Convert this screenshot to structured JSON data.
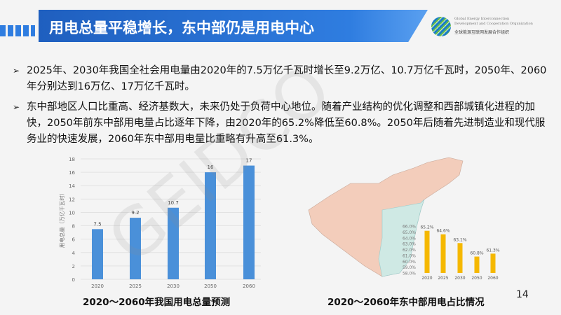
{
  "header": {
    "title": "用电总量平稳增长，东中部仍是用电中心"
  },
  "logo": {
    "en_line1": "Global Energy Interconnection",
    "en_line2": "Development and Cooperation Organization",
    "cn": "全球能源互联网发展合作组织"
  },
  "watermark": "GEIDCO",
  "bullets": [
    "2025年、2030年我国全社会用电量由2020年的7.5万亿千瓦时增长至9.2万亿、10.7万亿千瓦时，2050年、2060年分别达到16万亿、17万亿千瓦时。",
    "东中部地区人口比重高、经济基数大，未来仍处于负荷中心地位。随着产业结构的优化调整和西部城镇化进程的加快，2050年前东中部用电量占比逐年下降，由2020年的65.2%降低至60.8%。2050年后随着先进制造业和现代服务业的快速发展，2060年东中部用电量比重略有升高至61.3%。"
  ],
  "page_number": "14",
  "chart_data": [
    {
      "type": "bar",
      "title": "2020～2060年我国用电总量预测",
      "ylabel": "用电总量（万亿千瓦时）",
      "categories": [
        "2020",
        "2025",
        "2030",
        "2050",
        "2060"
      ],
      "values": [
        7.5,
        9.2,
        10.7,
        16,
        17
      ],
      "data_labels": [
        "7.5",
        "9.2",
        "10.7",
        "16",
        "17"
      ],
      "ylim": [
        0,
        18
      ],
      "yticks": [
        "0",
        "2",
        "4",
        "6",
        "8",
        "10",
        "12",
        "14",
        "16",
        "18"
      ],
      "grid": true,
      "color": "#4a90d9"
    },
    {
      "type": "bar",
      "title": "2020～2060年东中部用电占比情况",
      "categories": [
        "2020",
        "2025",
        "2030",
        "2050",
        "2060"
      ],
      "values": [
        65.2,
        64.6,
        63.1,
        60.8,
        61.3
      ],
      "data_labels": [
        "65.2%",
        "64.6%",
        "63.1%",
        "60.8%",
        "61.3%"
      ],
      "ylim": [
        58,
        66
      ],
      "yticks": [
        "58.0%",
        "59.0%",
        "60.0%",
        "61.0%",
        "62.0%",
        "63.0%",
        "64.0%",
        "65.0%",
        "66.0%"
      ],
      "color": "#f5b800"
    }
  ]
}
